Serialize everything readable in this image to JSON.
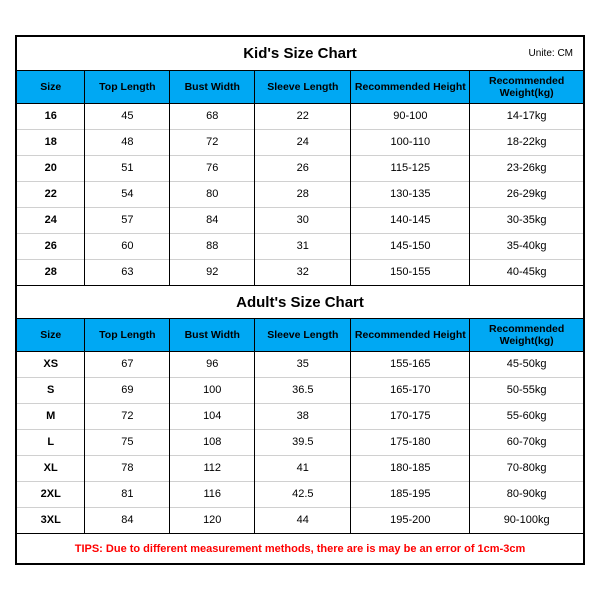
{
  "unit_label": "Unite: CM",
  "columns": [
    "Size",
    "Top Length",
    "Bust Width",
    "Sleeve Length",
    "Recommended Height",
    "Recommended Weight(kg)"
  ],
  "kids": {
    "title": "Kid's Size Chart",
    "rows": [
      [
        "16",
        "45",
        "68",
        "22",
        "90-100",
        "14-17kg"
      ],
      [
        "18",
        "48",
        "72",
        "24",
        "100-110",
        "18-22kg"
      ],
      [
        "20",
        "51",
        "76",
        "26",
        "115-125",
        "23-26kg"
      ],
      [
        "22",
        "54",
        "80",
        "28",
        "130-135",
        "26-29kg"
      ],
      [
        "24",
        "57",
        "84",
        "30",
        "140-145",
        "30-35kg"
      ],
      [
        "26",
        "60",
        "88",
        "31",
        "145-150",
        "35-40kg"
      ],
      [
        "28",
        "63",
        "92",
        "32",
        "150-155",
        "40-45kg"
      ]
    ]
  },
  "adults": {
    "title": "Adult's Size Chart",
    "rows": [
      [
        "XS",
        "67",
        "96",
        "35",
        "155-165",
        "45-50kg"
      ],
      [
        "S",
        "69",
        "100",
        "36.5",
        "165-170",
        "50-55kg"
      ],
      [
        "M",
        "72",
        "104",
        "38",
        "170-175",
        "55-60kg"
      ],
      [
        "L",
        "75",
        "108",
        "39.5",
        "175-180",
        "60-70kg"
      ],
      [
        "XL",
        "78",
        "112",
        "41",
        "180-185",
        "70-80kg"
      ],
      [
        "2XL",
        "81",
        "116",
        "42.5",
        "185-195",
        "80-90kg"
      ],
      [
        "3XL",
        "84",
        "120",
        "44",
        "195-200",
        "90-100kg"
      ]
    ]
  },
  "tips": "TIPS: Due to different measurement methods, there are is may be an error of 1cm-3cm",
  "style": {
    "header_bg": "#00a8f3",
    "border_color": "#000000",
    "row_divider": "#d0d0d0",
    "tips_color": "#ff0000",
    "background": "#ffffff",
    "col_widths_pct": [
      12,
      15,
      15,
      17,
      21,
      20
    ],
    "title_fontsize": 15,
    "header_fontsize": 10.5,
    "cell_fontsize": 11,
    "unit_fontsize": 10,
    "tips_fontsize": 11
  }
}
